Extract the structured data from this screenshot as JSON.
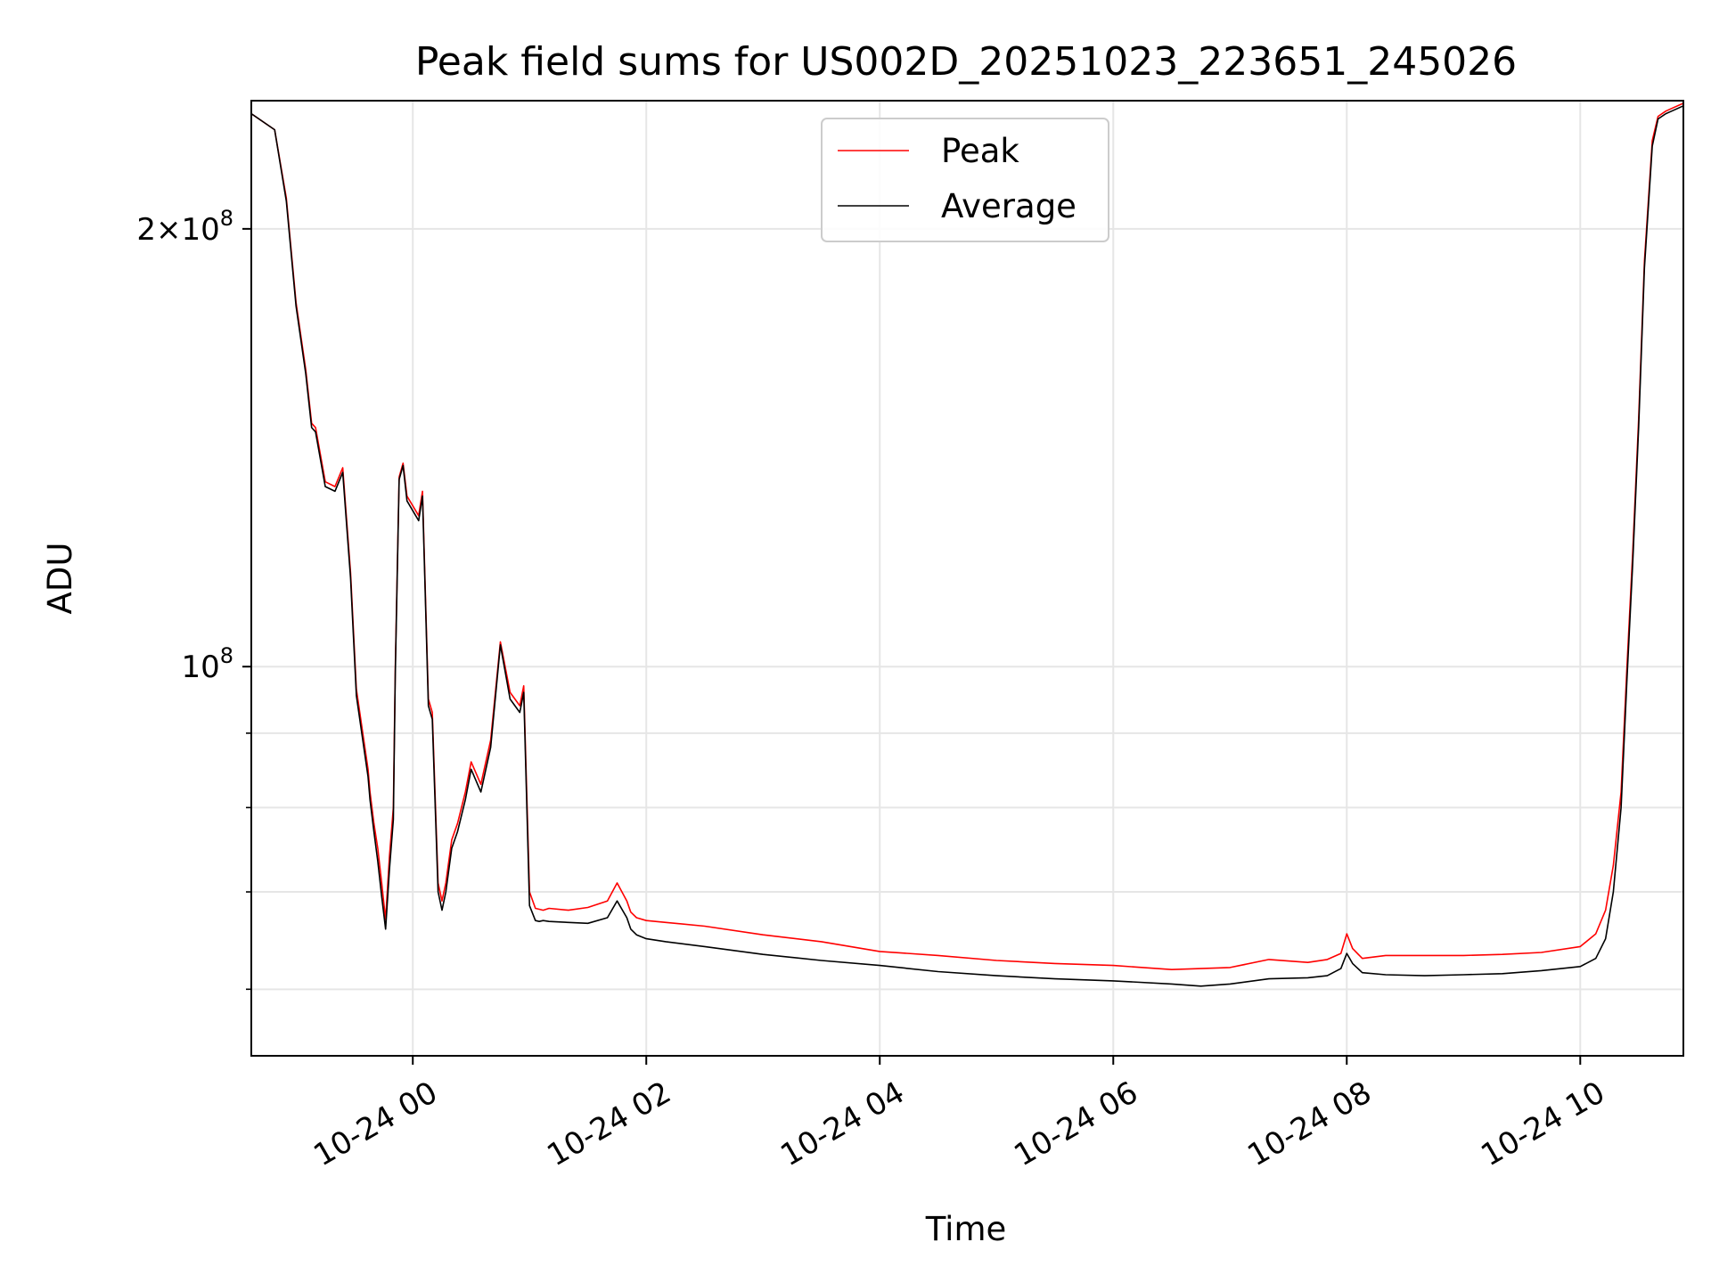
{
  "chart_data": {
    "type": "line",
    "title": "Peak field sums for US002D_20251023_223651_245026",
    "xlabel": "Time",
    "ylabel": "ADU",
    "yscale": "log",
    "ylim": [
      54000000,
      245000000
    ],
    "xlim": [
      "2025-10-23 22:37",
      "2025-10-24 10:53"
    ],
    "x_ticks": [
      {
        "value": "2025-10-24 00:00",
        "label": "10-24 00"
      },
      {
        "value": "2025-10-24 02:00",
        "label": "10-24 02"
      },
      {
        "value": "2025-10-24 04:00",
        "label": "10-24 04"
      },
      {
        "value": "2025-10-24 06:00",
        "label": "10-24 06"
      },
      {
        "value": "2025-10-24 08:00",
        "label": "10-24 08"
      },
      {
        "value": "2025-10-24 10:00",
        "label": "10-24 10"
      }
    ],
    "y_major_ticks": [
      {
        "value": 100000000,
        "base": "10",
        "exp": "8"
      },
      {
        "value": 200000000,
        "mant": "2",
        "base": "10",
        "exp": "8"
      }
    ],
    "y_minor_ticks": [
      60000000,
      70000000,
      80000000,
      90000000
    ],
    "grid": true,
    "legend_position": "top-center",
    "series": [
      {
        "name": "Peak",
        "color": "#ff0000",
        "x": [
          "2025-10-23 22:37",
          "2025-10-23 22:49",
          "2025-10-23 22:55",
          "2025-10-23 23:00",
          "2025-10-23 23:05",
          "2025-10-23 23:08",
          "2025-10-23 23:10",
          "2025-10-23 23:15",
          "2025-10-23 23:20",
          "2025-10-23 23:24",
          "2025-10-23 23:28",
          "2025-10-23 23:31",
          "2025-10-23 23:37",
          "2025-10-23 23:38",
          "2025-10-23 23:40",
          "2025-10-23 23:42",
          "2025-10-23 23:44",
          "2025-10-23 23:46",
          "2025-10-23 23:48",
          "2025-10-23 23:50",
          "2025-10-23 23:51",
          "2025-10-23 23:53",
          "2025-10-23 23:55",
          "2025-10-23 23:57",
          "2025-10-24 00:00",
          "2025-10-24 00:03",
          "2025-10-24 00:05",
          "2025-10-24 00:08",
          "2025-10-24 00:10",
          "2025-10-24 00:13",
          "2025-10-24 00:15",
          "2025-10-24 00:17",
          "2025-10-24 00:20",
          "2025-10-24 00:23",
          "2025-10-24 00:27",
          "2025-10-24 00:30",
          "2025-10-24 00:35",
          "2025-10-24 00:40",
          "2025-10-24 00:45",
          "2025-10-24 00:50",
          "2025-10-24 00:55",
          "2025-10-24 00:57",
          "2025-10-24 01:00",
          "2025-10-24 01:03",
          "2025-10-24 01:05",
          "2025-10-24 01:07",
          "2025-10-24 01:10",
          "2025-10-24 01:20",
          "2025-10-24 01:30",
          "2025-10-24 01:40",
          "2025-10-24 01:45",
          "2025-10-24 01:50",
          "2025-10-24 01:52",
          "2025-10-24 01:55",
          "2025-10-24 02:00",
          "2025-10-24 02:10",
          "2025-10-24 02:30",
          "2025-10-24 03:00",
          "2025-10-24 03:30",
          "2025-10-24 04:00",
          "2025-10-24 04:30",
          "2025-10-24 05:00",
          "2025-10-24 05:30",
          "2025-10-24 06:00",
          "2025-10-24 06:30",
          "2025-10-24 06:45",
          "2025-10-24 07:00",
          "2025-10-24 07:20",
          "2025-10-24 07:40",
          "2025-10-24 07:50",
          "2025-10-24 07:57",
          "2025-10-24 08:00",
          "2025-10-24 08:03",
          "2025-10-24 08:08",
          "2025-10-24 08:20",
          "2025-10-24 08:40",
          "2025-10-24 09:00",
          "2025-10-24 09:20",
          "2025-10-24 09:40",
          "2025-10-24 10:00",
          "2025-10-24 10:08",
          "2025-10-24 10:13",
          "2025-10-24 10:17",
          "2025-10-24 10:21",
          "2025-10-24 10:24",
          "2025-10-24 10:27",
          "2025-10-24 10:30",
          "2025-10-24 10:33",
          "2025-10-24 10:37",
          "2025-10-24 10:40",
          "2025-10-24 10:44",
          "2025-10-24 10:47",
          "2025-10-24 10:53"
        ],
        "y": [
          240000000,
          234000000,
          210000000,
          178000000,
          160000000,
          147000000,
          146000000,
          134000000,
          133000000,
          137000000,
          116000000,
          96500000,
          85000000,
          82000000,
          78000000,
          75000000,
          71000000,
          67000000,
          74000000,
          80000000,
          100000000,
          135000000,
          138000000,
          131000000,
          129000000,
          127000000,
          132000000,
          95000000,
          93000000,
          71000000,
          69000000,
          71000000,
          76000000,
          78000000,
          82000000,
          86000000,
          83000000,
          89000000,
          104000000,
          96000000,
          94000000,
          97000000,
          70000000,
          68200000,
          68100000,
          68000000,
          68200000,
          68000000,
          68300000,
          69000000,
          71000000,
          69000000,
          67800000,
          67200000,
          66900000,
          66700000,
          66300000,
          65400000,
          64700000,
          63700000,
          63300000,
          62800000,
          62500000,
          62300000,
          61900000,
          62000000,
          62100000,
          62900000,
          62600000,
          62900000,
          63500000,
          65500000,
          64000000,
          63000000,
          63300000,
          63300000,
          63300000,
          63400000,
          63600000,
          64200000,
          65500000,
          68000000,
          73000000,
          82000000,
          100000000,
          120000000,
          148000000,
          190000000,
          230000000,
          239000000,
          241000000,
          242000000,
          244000000
        ]
      },
      {
        "name": "Average",
        "color": "#000000",
        "x": [
          "2025-10-23 22:37",
          "2025-10-23 22:49",
          "2025-10-23 22:55",
          "2025-10-23 23:00",
          "2025-10-23 23:05",
          "2025-10-23 23:08",
          "2025-10-23 23:10",
          "2025-10-23 23:15",
          "2025-10-23 23:20",
          "2025-10-23 23:24",
          "2025-10-23 23:28",
          "2025-10-23 23:31",
          "2025-10-23 23:37",
          "2025-10-23 23:38",
          "2025-10-23 23:40",
          "2025-10-23 23:42",
          "2025-10-23 23:44",
          "2025-10-23 23:46",
          "2025-10-23 23:48",
          "2025-10-23 23:50",
          "2025-10-23 23:51",
          "2025-10-23 23:53",
          "2025-10-23 23:55",
          "2025-10-23 23:57",
          "2025-10-24 00:00",
          "2025-10-24 00:03",
          "2025-10-24 00:05",
          "2025-10-24 00:08",
          "2025-10-24 00:10",
          "2025-10-24 00:13",
          "2025-10-24 00:15",
          "2025-10-24 00:17",
          "2025-10-24 00:20",
          "2025-10-24 00:23",
          "2025-10-24 00:27",
          "2025-10-24 00:30",
          "2025-10-24 00:35",
          "2025-10-24 00:40",
          "2025-10-24 00:45",
          "2025-10-24 00:50",
          "2025-10-24 00:55",
          "2025-10-24 00:57",
          "2025-10-24 01:00",
          "2025-10-24 01:03",
          "2025-10-24 01:05",
          "2025-10-24 01:07",
          "2025-10-24 01:10",
          "2025-10-24 01:20",
          "2025-10-24 01:30",
          "2025-10-24 01:40",
          "2025-10-24 01:45",
          "2025-10-24 01:50",
          "2025-10-24 01:52",
          "2025-10-24 01:55",
          "2025-10-24 02:00",
          "2025-10-24 02:10",
          "2025-10-24 02:30",
          "2025-10-24 03:00",
          "2025-10-24 03:30",
          "2025-10-24 04:00",
          "2025-10-24 04:30",
          "2025-10-24 05:00",
          "2025-10-24 05:30",
          "2025-10-24 06:00",
          "2025-10-24 06:30",
          "2025-10-24 06:45",
          "2025-10-24 07:00",
          "2025-10-24 07:20",
          "2025-10-24 07:40",
          "2025-10-24 07:50",
          "2025-10-24 07:57",
          "2025-10-24 08:00",
          "2025-10-24 08:03",
          "2025-10-24 08:08",
          "2025-10-24 08:20",
          "2025-10-24 08:40",
          "2025-10-24 09:00",
          "2025-10-24 09:20",
          "2025-10-24 09:40",
          "2025-10-24 10:00",
          "2025-10-24 10:08",
          "2025-10-24 10:13",
          "2025-10-24 10:17",
          "2025-10-24 10:21",
          "2025-10-24 10:24",
          "2025-10-24 10:27",
          "2025-10-24 10:30",
          "2025-10-24 10:33",
          "2025-10-24 10:37",
          "2025-10-24 10:40",
          "2025-10-24 10:44",
          "2025-10-24 10:47",
          "2025-10-24 10:53"
        ],
        "y": [
          240000000,
          234000000,
          209000000,
          177000000,
          159000000,
          146000000,
          145000000,
          133000000,
          132000000,
          136000000,
          115000000,
          95500000,
          84000000,
          81000000,
          77000000,
          73500000,
          69500000,
          66000000,
          72500000,
          78500000,
          99000000,
          134500000,
          137500000,
          130000000,
          128000000,
          126000000,
          131000000,
          94000000,
          92000000,
          70000000,
          68000000,
          70000000,
          75000000,
          77000000,
          81000000,
          85000000,
          82000000,
          88000000,
          103500000,
          95000000,
          93000000,
          96000000,
          68500000,
          66900000,
          66800000,
          66900000,
          66800000,
          66700000,
          66600000,
          67200000,
          69000000,
          67200000,
          66000000,
          65400000,
          65000000,
          64700000,
          64200000,
          63400000,
          62800000,
          62300000,
          61700000,
          61300000,
          61000000,
          60800000,
          60500000,
          60300000,
          60500000,
          61000000,
          61100000,
          61300000,
          62000000,
          63500000,
          62500000,
          61600000,
          61400000,
          61300000,
          61400000,
          61500000,
          61800000,
          62200000,
          63000000,
          65000000,
          70000000,
          80000000,
          98000000,
          118000000,
          146000000,
          188000000,
          228000000,
          238000000,
          240000000,
          241000000,
          243000000
        ]
      }
    ]
  }
}
